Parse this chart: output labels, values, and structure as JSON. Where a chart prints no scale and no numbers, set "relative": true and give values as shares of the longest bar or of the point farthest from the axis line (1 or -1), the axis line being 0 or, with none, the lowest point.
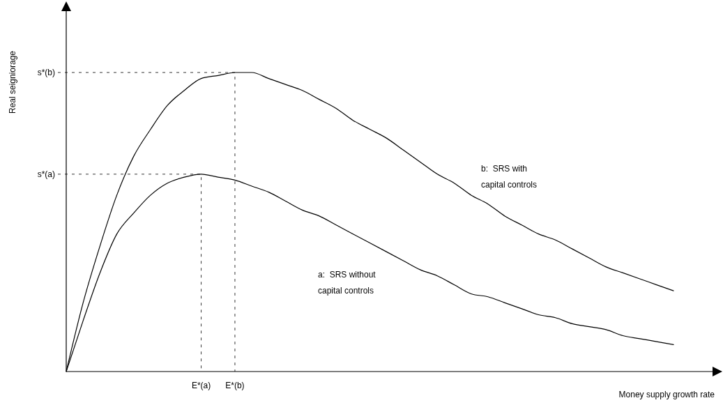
{
  "chart_data": {
    "type": "line",
    "relative": true,
    "xlabel": "Money supply growth rate",
    "ylabel": "Real seigniorage",
    "categories": [
      null,
      null,
      null,
      null,
      null,
      null,
      null,
      null,
      "E*(a)",
      null,
      "E*(b)",
      null,
      null,
      null,
      null,
      null,
      null,
      null,
      null,
      null,
      null,
      null,
      null,
      null,
      null,
      null,
      null,
      null,
      null,
      null,
      null,
      null,
      null,
      null,
      null,
      null,
      null
    ],
    "series": [
      {
        "name": "a:  SRS without capital controls",
        "color": "#000000",
        "values": [
          0,
          0.17,
          0.33,
          0.46,
          0.53,
          0.59,
          0.63,
          0.65,
          0.66,
          0.65,
          0.64,
          0.62,
          0.6,
          0.57,
          0.54,
          0.52,
          0.49,
          0.46,
          0.43,
          0.4,
          0.37,
          0.34,
          0.32,
          0.29,
          0.26,
          0.25,
          0.23,
          0.21,
          0.19,
          0.18,
          0.16,
          0.15,
          0.14,
          0.12,
          0.11,
          0.1,
          0.09
        ]
      },
      {
        "name": "b:  SRS with capital controls",
        "color": "#000000",
        "values": [
          0,
          0.23,
          0.42,
          0.59,
          0.72,
          0.81,
          0.89,
          0.94,
          0.98,
          0.99,
          1,
          1,
          0.98,
          0.96,
          0.94,
          0.91,
          0.88,
          0.84,
          0.81,
          0.78,
          0.74,
          0.7,
          0.66,
          0.63,
          0.59,
          0.56,
          0.52,
          0.49,
          0.46,
          0.44,
          0.41,
          0.38,
          0.35,
          0.33,
          0.31,
          0.29,
          0.27
        ]
      }
    ],
    "ref_lines": [
      {
        "axis": "y",
        "value": 0.66,
        "label": "s*(a)",
        "line_style": "dashed"
      },
      {
        "axis": "y",
        "value": 1,
        "label": "s*(b)",
        "line_style": "dashed"
      }
    ]
  }
}
